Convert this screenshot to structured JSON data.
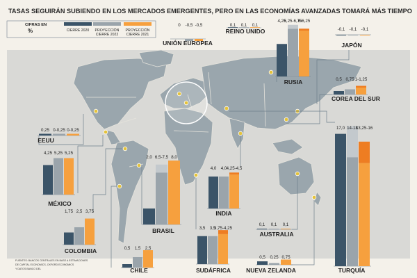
{
  "title": "TASAS SEGUIRÁN SUBIENDO EN LOS MERCADOS EMERGENTES, PERO EN LAS ECONOMÍAS AVANZADAS TOMARÁ MÁS TIEMPO",
  "units_label": "CIFRAS EN %",
  "source": "FUENTES: BANCOS CENTRALES EN BASE A ESTIMACIONES DE CAPITAL ECONOMICS, OXFORD ECONOMICS Y DATOS BANCO DEL",
  "colors": {
    "background": "#f4f1ea",
    "ocean": "#d9d9d6",
    "land": "#9aa6ad",
    "border": "#e5e3dc",
    "dark": "#3b5468",
    "gray": "#9aa4ab",
    "orange": "#f6a03e",
    "orange_dark": "#ee7d22",
    "marker": "#e4c23a",
    "line": "#6e7f8b"
  },
  "chart_data": {
    "type": "bar",
    "series": [
      {
        "name": "CIERRE 2020"
      },
      {
        "name": "PROYECCIÓN CIERRE 2022"
      },
      {
        "name": "PROYECCIÓN CIERRE 2021"
      }
    ],
    "countries": [
      {
        "name": "UNIÓN EUROPEA",
        "values": [
          0,
          -0.5,
          -0.5
        ],
        "labels": [
          "0",
          "-0,5",
          "-0,5"
        ]
      },
      {
        "name": "REINO UNIDO",
        "values": [
          0.1,
          0.1,
          0.1
        ],
        "labels": [
          "0,1",
          "0,1",
          "0,1"
        ]
      },
      {
        "name": "JAPÓN",
        "values": [
          -0.1,
          -0.1,
          -0.1
        ],
        "labels": [
          "-0,1",
          "-0,1",
          "-0,1"
        ]
      },
      {
        "name": "RUSIA",
        "values": [
          4.25,
          6.5,
          6.125
        ],
        "labels": [
          "4,25",
          "6,25-6,75",
          "6-6,25"
        ],
        "ranges": [
          null,
          [
            6.25,
            6.75
          ],
          [
            6,
            6.25
          ]
        ]
      },
      {
        "name": "COREA DEL SUR",
        "values": [
          0.5,
          0.75,
          1.125
        ],
        "labels": [
          "0,5",
          "0,75",
          "1-1,25"
        ],
        "ranges": [
          null,
          null,
          [
            1,
            1.25
          ]
        ]
      },
      {
        "name": "EEUU",
        "values": [
          0.25,
          0.25,
          0.25
        ],
        "labels": [
          "0,25",
          "0-0,25",
          "0-0,25"
        ]
      },
      {
        "name": "MÉXICO",
        "values": [
          4.25,
          5.25,
          5.25
        ],
        "labels": [
          "4,25",
          "5,25",
          "5,25"
        ]
      },
      {
        "name": "COLOMBIA",
        "values": [
          1.75,
          2.5,
          3.75
        ],
        "labels": [
          "1,75",
          "2,5",
          "3,75"
        ]
      },
      {
        "name": "CHILE",
        "values": [
          0.5,
          1.5,
          2.5
        ],
        "labels": [
          "0,5",
          "1,5",
          "2,5"
        ]
      },
      {
        "name": "BRASIL",
        "values": [
          2.0,
          7.0,
          8.0
        ],
        "labels": [
          "2,0",
          "6,5-7,5",
          "8,0"
        ],
        "ranges": [
          null,
          [
            6.5,
            7.5
          ],
          null
        ]
      },
      {
        "name": "INDIA",
        "values": [
          4.0,
          4.0,
          4.375
        ],
        "labels": [
          "4,0",
          "4,0",
          "4,25-4,5"
        ],
        "ranges": [
          null,
          null,
          [
            4.25,
            4.5
          ]
        ]
      },
      {
        "name": "SUDÁFRICA",
        "values": [
          3.5,
          3.5,
          4.0
        ],
        "labels": [
          "3,5",
          "3,5",
          "3,75-4,25"
        ],
        "ranges": [
          null,
          null,
          [
            3.75,
            4.25
          ]
        ]
      },
      {
        "name": "AUSTRALIA",
        "values": [
          0.1,
          0.1,
          0.1
        ],
        "labels": [
          "0,1",
          "0,1",
          "0,1"
        ]
      },
      {
        "name": "NUEVA ZELANDA",
        "values": [
          0.5,
          0.25,
          0.75
        ],
        "labels": [
          "0,5",
          "0,25",
          "0,75"
        ]
      },
      {
        "name": "TURQUÍA",
        "values": [
          17.0,
          16.0,
          14.625
        ],
        "labels": [
          "17,0",
          "14-18",
          "13,25-16"
        ],
        "ranges": [
          null,
          [
            14,
            18
          ],
          [
            13.25,
            16
          ]
        ]
      }
    ]
  }
}
